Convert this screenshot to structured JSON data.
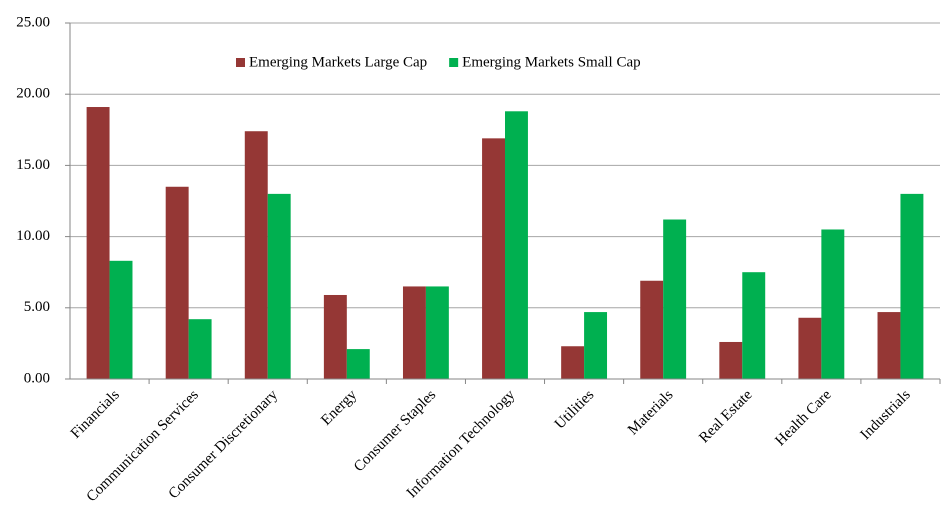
{
  "chart_data": {
    "type": "bar",
    "categories": [
      "Financials",
      "Communication Services",
      "Consumer Discretionary",
      "Energy",
      "Consumer Staples",
      "Information Technology",
      "Utilities",
      "Materials",
      "Real Estate",
      "Health Care",
      "Industrials"
    ],
    "series": [
      {
        "name": "Emerging Markets Large Cap",
        "color": "#953735",
        "values": [
          19.1,
          13.5,
          17.4,
          5.9,
          6.5,
          16.9,
          2.3,
          6.9,
          2.6,
          4.3,
          4.7
        ]
      },
      {
        "name": "Emerging Markets Small Cap",
        "color": "#00b050",
        "values": [
          8.3,
          4.2,
          13.0,
          2.1,
          6.5,
          18.8,
          4.7,
          11.2,
          7.5,
          10.5,
          13.0
        ]
      }
    ],
    "ylim": [
      0,
      25
    ],
    "yticks": [
      {
        "value": 0,
        "label": "0.00"
      },
      {
        "value": 5,
        "label": "5.00"
      },
      {
        "value": 10,
        "label": "10.00"
      },
      {
        "value": 15,
        "label": "15.00"
      },
      {
        "value": 20,
        "label": "20.00"
      },
      {
        "value": 25,
        "label": "25.00"
      }
    ],
    "grid": true,
    "legend": "top"
  }
}
